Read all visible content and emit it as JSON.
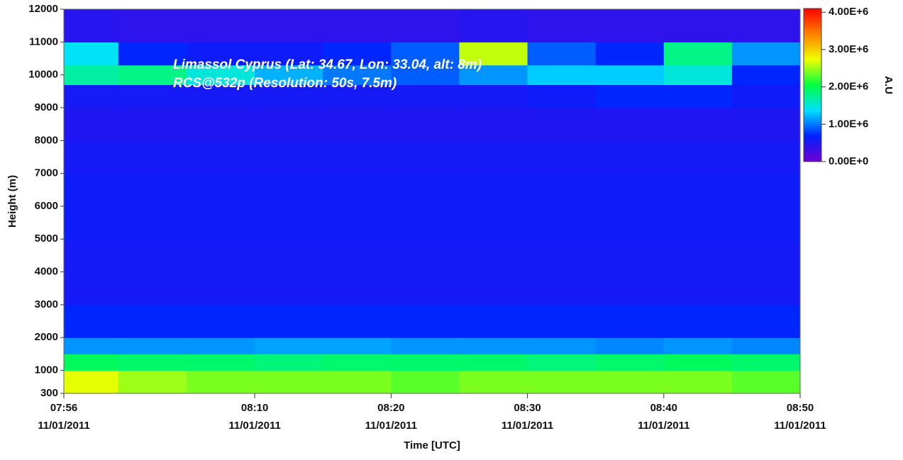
{
  "chart_data": {
    "type": "heatmap",
    "annotations": [
      "Limassol Cyprus (Lat: 34.67, Lon: 33.04, alt: 8m)",
      "RCS@532p (Resolution: 50s, 7.5m)"
    ],
    "xlabel": "Time [UTC]",
    "ylabel": "Height (m)",
    "colorbar_label": "A.U",
    "x": [
      "07:56",
      "08:00",
      "08:05",
      "08:10",
      "08:15",
      "08:20",
      "08:25",
      "08:30",
      "08:35",
      "08:40",
      "08:45"
    ],
    "xlim": [
      "07:56",
      "08:50"
    ],
    "xticks": [
      "07:56",
      "08:10",
      "08:20",
      "08:30",
      "08:40",
      "08:50"
    ],
    "xtick_dates": [
      "11/01/2011",
      "11/01/2011",
      "11/01/2011",
      "11/01/2011",
      "11/01/2011",
      "11/01/2011"
    ],
    "y_bins": [
      300,
      1000,
      1500,
      2000,
      3000,
      4000,
      5000,
      6000,
      7000,
      8000,
      9000,
      9700,
      10300,
      11000,
      12000
    ],
    "ylim": [
      300,
      12000
    ],
    "yticks": [
      300,
      1000,
      2000,
      3000,
      4000,
      5000,
      6000,
      7000,
      8000,
      9000,
      10000,
      11000,
      12000
    ],
    "z": [
      [
        2700000,
        2500000,
        2400000,
        2400000,
        2400000,
        2300000,
        2400000,
        2400000,
        2400000,
        2400000,
        2300000
      ],
      [
        1950000,
        1900000,
        1900000,
        1850000,
        1900000,
        1900000,
        1900000,
        1850000,
        1900000,
        1950000,
        1900000
      ],
      [
        1100000,
        1100000,
        1100000,
        1150000,
        1150000,
        1100000,
        1100000,
        1100000,
        1050000,
        1100000,
        1050000
      ],
      [
        700000,
        700000,
        700000,
        700000,
        700000,
        700000,
        700000,
        700000,
        700000,
        700000,
        700000
      ],
      [
        550000,
        550000,
        550000,
        550000,
        550000,
        550000,
        550000,
        550000,
        550000,
        550000,
        550000
      ],
      [
        550000,
        550000,
        550000,
        550000,
        550000,
        550000,
        550000,
        550000,
        550000,
        550000,
        550000
      ],
      [
        600000,
        600000,
        600000,
        600000,
        600000,
        600000,
        600000,
        600000,
        600000,
        600000,
        600000
      ],
      [
        600000,
        600000,
        600000,
        600000,
        600000,
        600000,
        600000,
        600000,
        600000,
        600000,
        600000
      ],
      [
        550000,
        550000,
        550000,
        550000,
        550000,
        550000,
        550000,
        550000,
        550000,
        550000,
        550000
      ],
      [
        500000,
        500000,
        500000,
        500000,
        500000,
        500000,
        500000,
        500000,
        500000,
        500000,
        500000
      ],
      [
        550000,
        550000,
        550000,
        550000,
        550000,
        550000,
        550000,
        600000,
        700000,
        700000,
        600000
      ],
      [
        1700000,
        1800000,
        1500000,
        1200000,
        1000000,
        900000,
        1100000,
        1300000,
        1300000,
        1500000,
        700000
      ],
      [
        1400000,
        700000,
        600000,
        600000,
        700000,
        900000,
        2600000,
        900000,
        700000,
        1800000,
        1100000
      ],
      [
        450000,
        400000,
        400000,
        400000,
        400000,
        400000,
        450000,
        400000,
        400000,
        400000,
        400000
      ]
    ],
    "clim": [
      0,
      4100000
    ],
    "cticks": [
      {
        "value": 0,
        "label": "0.00E+0"
      },
      {
        "value": 1000000,
        "label": "1.00E+6"
      },
      {
        "value": 2000000,
        "label": "2.00E+6"
      },
      {
        "value": 3000000,
        "label": "3.00E+6"
      },
      {
        "value": 4000000,
        "label": "4.00E+6"
      }
    ],
    "colormap": [
      "#7000d0",
      "#0020ff",
      "#00e0ff",
      "#00ff40",
      "#f0ff00",
      "#ff8000",
      "#ff0000"
    ]
  }
}
